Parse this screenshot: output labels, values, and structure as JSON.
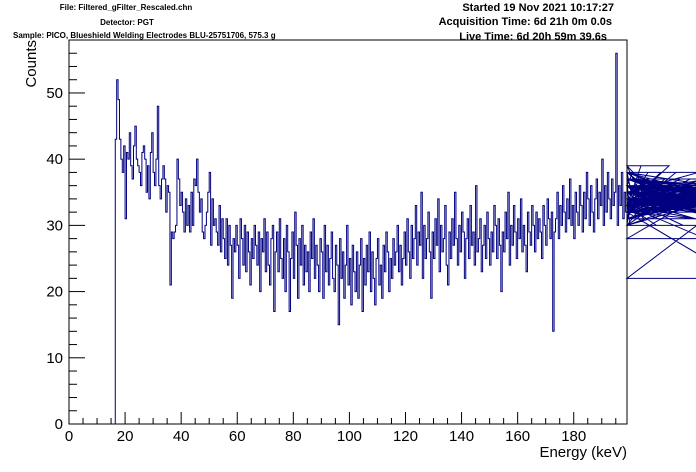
{
  "header": {
    "file": "File: Filtered_gFilter_Rescaled.chn",
    "detector": "Detector: PGT",
    "sample": "Sample: PICO, Blueshield Welding Electrodes BLU-25751706, 575.3 g",
    "started": "Started 19 Nov 2021 10:17:27",
    "acquisition": "Acquisition Time: 6d 21h 0m 0.0s",
    "live": "Live Time: 6d 20h 59m 39.6s"
  },
  "chart_data": {
    "type": "histogram",
    "xlabel": "Energy (keV)",
    "ylabel": "Counts",
    "xlim": [
      0,
      199
    ],
    "ylim": [
      0,
      58
    ],
    "xticks": [
      0,
      20,
      40,
      60,
      80,
      100,
      120,
      140,
      160,
      180
    ],
    "yticks": [
      0,
      10,
      20,
      30,
      40,
      50
    ],
    "line_color": "#000080",
    "bin_start": 16.0,
    "bin_width": 0.5,
    "values": [
      0,
      43,
      52,
      49,
      43,
      40,
      38,
      42,
      31,
      41,
      40,
      44,
      39,
      37,
      42,
      45,
      40,
      39,
      38,
      36,
      41,
      42,
      40,
      35,
      39,
      34,
      41,
      44,
      38,
      36,
      40,
      48,
      36,
      34,
      37,
      39,
      37,
      32,
      36,
      35,
      21,
      29,
      28,
      29,
      30,
      40,
      37,
      33,
      35,
      32,
      29,
      34,
      30,
      33,
      29,
      35,
      30,
      37,
      36,
      40,
      35,
      32,
      34,
      29,
      28,
      30,
      32,
      35,
      38,
      27,
      34,
      30,
      31,
      29,
      27,
      33,
      26,
      31,
      28,
      25,
      31,
      24,
      30,
      27,
      19,
      28,
      26,
      30,
      27,
      22,
      31,
      28,
      24,
      30,
      23,
      29,
      26,
      21,
      28,
      25,
      30,
      27,
      24,
      29,
      20,
      28,
      26,
      31,
      23,
      29,
      24,
      21,
      28,
      30,
      17,
      26,
      29,
      23,
      31,
      25,
      22,
      28,
      20,
      30,
      26,
      17,
      25,
      29,
      22,
      32,
      27,
      19,
      28,
      24,
      30,
      21,
      27,
      23,
      26,
      20,
      29,
      25,
      31,
      22,
      27,
      24,
      20,
      28,
      26,
      19,
      30,
      23,
      27,
      21,
      25,
      29,
      22,
      20,
      27,
      24,
      15,
      28,
      22,
      26,
      19,
      24,
      30,
      21,
      25,
      18,
      27,
      23,
      20,
      26,
      19,
      24,
      28,
      17,
      25,
      21,
      27,
      23,
      29,
      20,
      26,
      22,
      18,
      25,
      28,
      21,
      24,
      19,
      27,
      23,
      29,
      26,
      20,
      25,
      22,
      28,
      24,
      26,
      30,
      23,
      27,
      21,
      25,
      29,
      24,
      31,
      26,
      22,
      30,
      25,
      28,
      33,
      24,
      29,
      27,
      35,
      22,
      30,
      25,
      28,
      32,
      26,
      19,
      29,
      25,
      31,
      27,
      34,
      23,
      30,
      26,
      28,
      33,
      24,
      21,
      29,
      25,
      31,
      27,
      35,
      28,
      24,
      30,
      26,
      32,
      29,
      22,
      28,
      31,
      25,
      33,
      27,
      29,
      24,
      36,
      26,
      28,
      31,
      23,
      27,
      30,
      25,
      32,
      28,
      24,
      29,
      26,
      33,
      30,
      25,
      31,
      27,
      20,
      29,
      26,
      32,
      28,
      35,
      24,
      30,
      27,
      33,
      29,
      25,
      31,
      28,
      34,
      26,
      30,
      27,
      23,
      32,
      29,
      27,
      33,
      30,
      26,
      32,
      28,
      31,
      29,
      25,
      33,
      30,
      27,
      34,
      31,
      28,
      32,
      14,
      29,
      31,
      35,
      28,
      33,
      30,
      36,
      32,
      29,
      34,
      31,
      37,
      30,
      33,
      28,
      35,
      32,
      30,
      36,
      33,
      29,
      35,
      31,
      38,
      34,
      30,
      36,
      32,
      29,
      34,
      37,
      31,
      35,
      33,
      40,
      30,
      36,
      32,
      38,
      34,
      31,
      37,
      33,
      35,
      56,
      30,
      36,
      33,
      38,
      31,
      35,
      32,
      37,
      34,
      30,
      36,
      38,
      33,
      35,
      31,
      37,
      33,
      39,
      34,
      31,
      36,
      33,
      38,
      35,
      32,
      36,
      34,
      33,
      30,
      36,
      33,
      38,
      34,
      32,
      37,
      35,
      33,
      39,
      32,
      36,
      34,
      32,
      38,
      35,
      33,
      37,
      34,
      30,
      36,
      33,
      35,
      32,
      37,
      34,
      36,
      33,
      31,
      35,
      38,
      34,
      32,
      36,
      33,
      28,
      35,
      37,
      34,
      32,
      36,
      33,
      37,
      34,
      30,
      35,
      33,
      38,
      34,
      31,
      36,
      33,
      35,
      32,
      37,
      34,
      33,
      36,
      32,
      22,
      35,
      33,
      37,
      34,
      31,
      36,
      33,
      38,
      35,
      32,
      36,
      34,
      33,
      37,
      35,
      32,
      30,
      36,
      34,
      33,
      37,
      35,
      33,
      31,
      36,
      34,
      32,
      35,
      33,
      37,
      34,
      31,
      36,
      33,
      35,
      32,
      34,
      36,
      33,
      35,
      32,
      36,
      34,
      33,
      35,
      32,
      36,
      34,
      33,
      37,
      35,
      33,
      36,
      34,
      32,
      35,
      33,
      36,
      34,
      35,
      33,
      36,
      34,
      32,
      35,
      33,
      36,
      34,
      33,
      35,
      32,
      37,
      33,
      35,
      34,
      32,
      36,
      33,
      35,
      34,
      33,
      36,
      34,
      32,
      35,
      33,
      36,
      34,
      33,
      35,
      32,
      36,
      34,
      33,
      35,
      33,
      36,
      34,
      32,
      35,
      33,
      36,
      34,
      32,
      35,
      33,
      36,
      35,
      33,
      34,
      36,
      32,
      35,
      33,
      36,
      34,
      32,
      35,
      33,
      36,
      34,
      33,
      35,
      32,
      36,
      34,
      33,
      35,
      33,
      36,
      34,
      35,
      33,
      34,
      36,
      33,
      35,
      32,
      36,
      34,
      33,
      35,
      32,
      36,
      34,
      33,
      35,
      32,
      36,
      34,
      33,
      35,
      33,
      36,
      34,
      32,
      35,
      33,
      36,
      34,
      32,
      35,
      33
    ]
  }
}
